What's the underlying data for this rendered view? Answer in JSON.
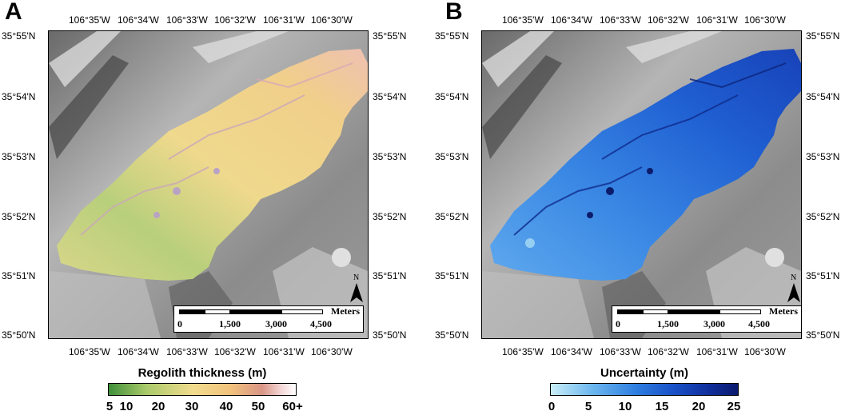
{
  "panels": [
    {
      "letter": "A",
      "legend_title": "Regolith thickness (m)",
      "legend_ticks": [
        "5",
        "10",
        "20",
        "30",
        "40",
        "50",
        "60+"
      ],
      "legend_colors": [
        "#3f8f3a",
        "#a9c96a",
        "#f1dc8f",
        "#f1c27d",
        "#d99585",
        "#f3d6d6",
        "#ffffff"
      ]
    },
    {
      "letter": "B",
      "legend_title": "Uncertainty (m)",
      "legend_ticks": [
        "0",
        "5",
        "10",
        "15",
        "20",
        "25"
      ],
      "legend_colors": [
        "#c9eef8",
        "#6db7ef",
        "#2f7fe0",
        "#1a52c8",
        "#102e9a",
        "#0a1a6e"
      ]
    }
  ],
  "longitude_ticks": [
    "106°35'W",
    "106°34'W",
    "106°33'W",
    "106°32'W",
    "106°31'W",
    "106°30'W"
  ],
  "latitude_ticks": [
    "35°55'N",
    "35°54'N",
    "35°53'N",
    "35°52'N",
    "35°51'N",
    "35°50'N"
  ],
  "scale_bar": {
    "unit": "Meters",
    "labels": [
      "0",
      "1,500",
      "3,000",
      "4,500"
    ]
  },
  "north_label": "N"
}
